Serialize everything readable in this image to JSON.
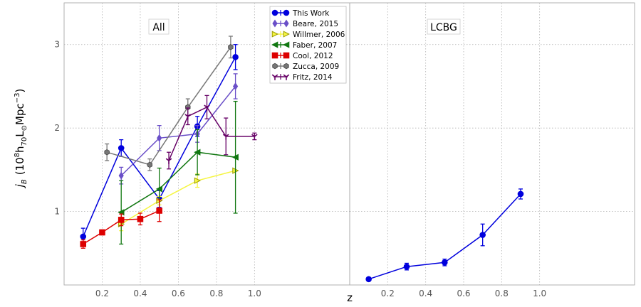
{
  "chart_data": {
    "type": "scatter",
    "xlabel": "z",
    "ylabel": "j_B (10^8 h_70 L_⊙ Mpc^-3)",
    "ylabel_parts": {
      "main": "j",
      "sub_main": "B",
      "open": "(10",
      "sup1": "8",
      "h": "h",
      "sub_h": "70",
      "l": "L",
      "sub_l": "⊙",
      "mpc": "Mpc",
      "sup2": "−3",
      "close": ")"
    },
    "xlim": [
      0.0,
      1.5
    ],
    "ylim": [
      0.12,
      3.5
    ],
    "x_ticks": [
      0.2,
      0.4,
      0.6,
      0.8,
      1.0
    ],
    "x_tick_labels": [
      "0.2",
      "0.4",
      "0.6",
      "0.8",
      "1.0"
    ],
    "y_ticks": [
      1,
      2,
      3
    ],
    "y_tick_labels": [
      "1",
      "2",
      "3"
    ],
    "grid": true,
    "legend_position": "top-right of left panel",
    "panels": [
      {
        "label": "All",
        "series": [
          {
            "name": "This Work",
            "color": "#0000dd",
            "marker": "circle",
            "line": true,
            "points": [
              {
                "x": 0.1,
                "y": 0.7,
                "err": 0.1
              },
              {
                "x": 0.3,
                "y": 1.76,
                "err": 0.1
              },
              {
                "x": 0.5,
                "y": 1.15,
                "err": 0.1
              },
              {
                "x": 0.7,
                "y": 2.02,
                "err": 0.12
              },
              {
                "x": 0.9,
                "y": 2.85,
                "err": 0.15
              }
            ]
          },
          {
            "name": "Beare, 2015",
            "color": "#6a4fc8",
            "marker": "diamond",
            "line": true,
            "points": [
              {
                "x": 0.3,
                "y": 1.43,
                "err": 0.1
              },
              {
                "x": 0.5,
                "y": 1.88,
                "err": 0.15
              },
              {
                "x": 0.7,
                "y": 1.93,
                "err": 0.1
              },
              {
                "x": 0.9,
                "y": 2.5,
                "err": 0.15
              }
            ]
          },
          {
            "name": "Willmer, 2006",
            "color": "#f5f542",
            "marker": "triangle-right",
            "line": true,
            "points": [
              {
                "x": 0.3,
                "y": 0.85,
                "err": 0.08
              },
              {
                "x": 0.5,
                "y": 1.13,
                "err": 0.05
              },
              {
                "x": 0.7,
                "y": 1.37,
                "err": 0.08
              },
              {
                "x": 0.9,
                "y": 1.49,
                "err": 0.0
              }
            ]
          },
          {
            "name": "Faber, 2007",
            "color": "#117711",
            "marker": "triangle-left",
            "line": true,
            "points": [
              {
                "x": 0.3,
                "y": 0.99,
                "err": 0.38
              },
              {
                "x": 0.5,
                "y": 1.27,
                "err": 0.25
              },
              {
                "x": 0.7,
                "y": 1.71,
                "err": 0.27
              },
              {
                "x": 0.9,
                "y": 1.65,
                "err": 0.67
              }
            ]
          },
          {
            "name": "Cool, 2012",
            "color": "#dd0000",
            "marker": "square",
            "line": true,
            "points": [
              {
                "x": 0.1,
                "y": 0.61,
                "err": 0.05
              },
              {
                "x": 0.2,
                "y": 0.75,
                "err": 0.03
              },
              {
                "x": 0.3,
                "y": 0.9,
                "err": 0.07
              },
              {
                "x": 0.4,
                "y": 0.91,
                "err": 0.07
              },
              {
                "x": 0.5,
                "y": 1.01,
                "err": 0.13
              }
            ]
          },
          {
            "name": "Zucca, 2009",
            "color": "#777777",
            "marker": "hexagon",
            "line": true,
            "points": [
              {
                "x": 0.225,
                "y": 1.71,
                "err": 0.1
              },
              {
                "x": 0.45,
                "y": 1.56,
                "err": 0.07
              },
              {
                "x": 0.65,
                "y": 2.25,
                "err": 0.1
              },
              {
                "x": 0.875,
                "y": 2.97,
                "err": 0.13
              }
            ]
          },
          {
            "name": "Fritz, 2014",
            "color": "#660066",
            "marker": "tri-down",
            "line": true,
            "points": [
              {
                "x": 0.55,
                "y": 1.61,
                "err": 0.1
              },
              {
                "x": 0.65,
                "y": 2.14,
                "err": 0.1
              },
              {
                "x": 0.75,
                "y": 2.25,
                "err": 0.14
              },
              {
                "x": 0.85,
                "y": 1.9,
                "err": 0.22
              },
              {
                "x": 1.0,
                "y": 1.9,
                "err": 0.04
              }
            ]
          }
        ]
      },
      {
        "label": "LCBG",
        "series": [
          {
            "name": "This Work",
            "color": "#0000dd",
            "marker": "circle",
            "line": true,
            "points": [
              {
                "x": 0.1,
                "y": 0.19,
                "err": 0.0
              },
              {
                "x": 0.3,
                "y": 0.34,
                "err": 0.04
              },
              {
                "x": 0.5,
                "y": 0.39,
                "err": 0.04
              },
              {
                "x": 0.7,
                "y": 0.72,
                "err": 0.13
              },
              {
                "x": 0.9,
                "y": 1.21,
                "err": 0.06
              }
            ]
          }
        ]
      }
    ]
  }
}
